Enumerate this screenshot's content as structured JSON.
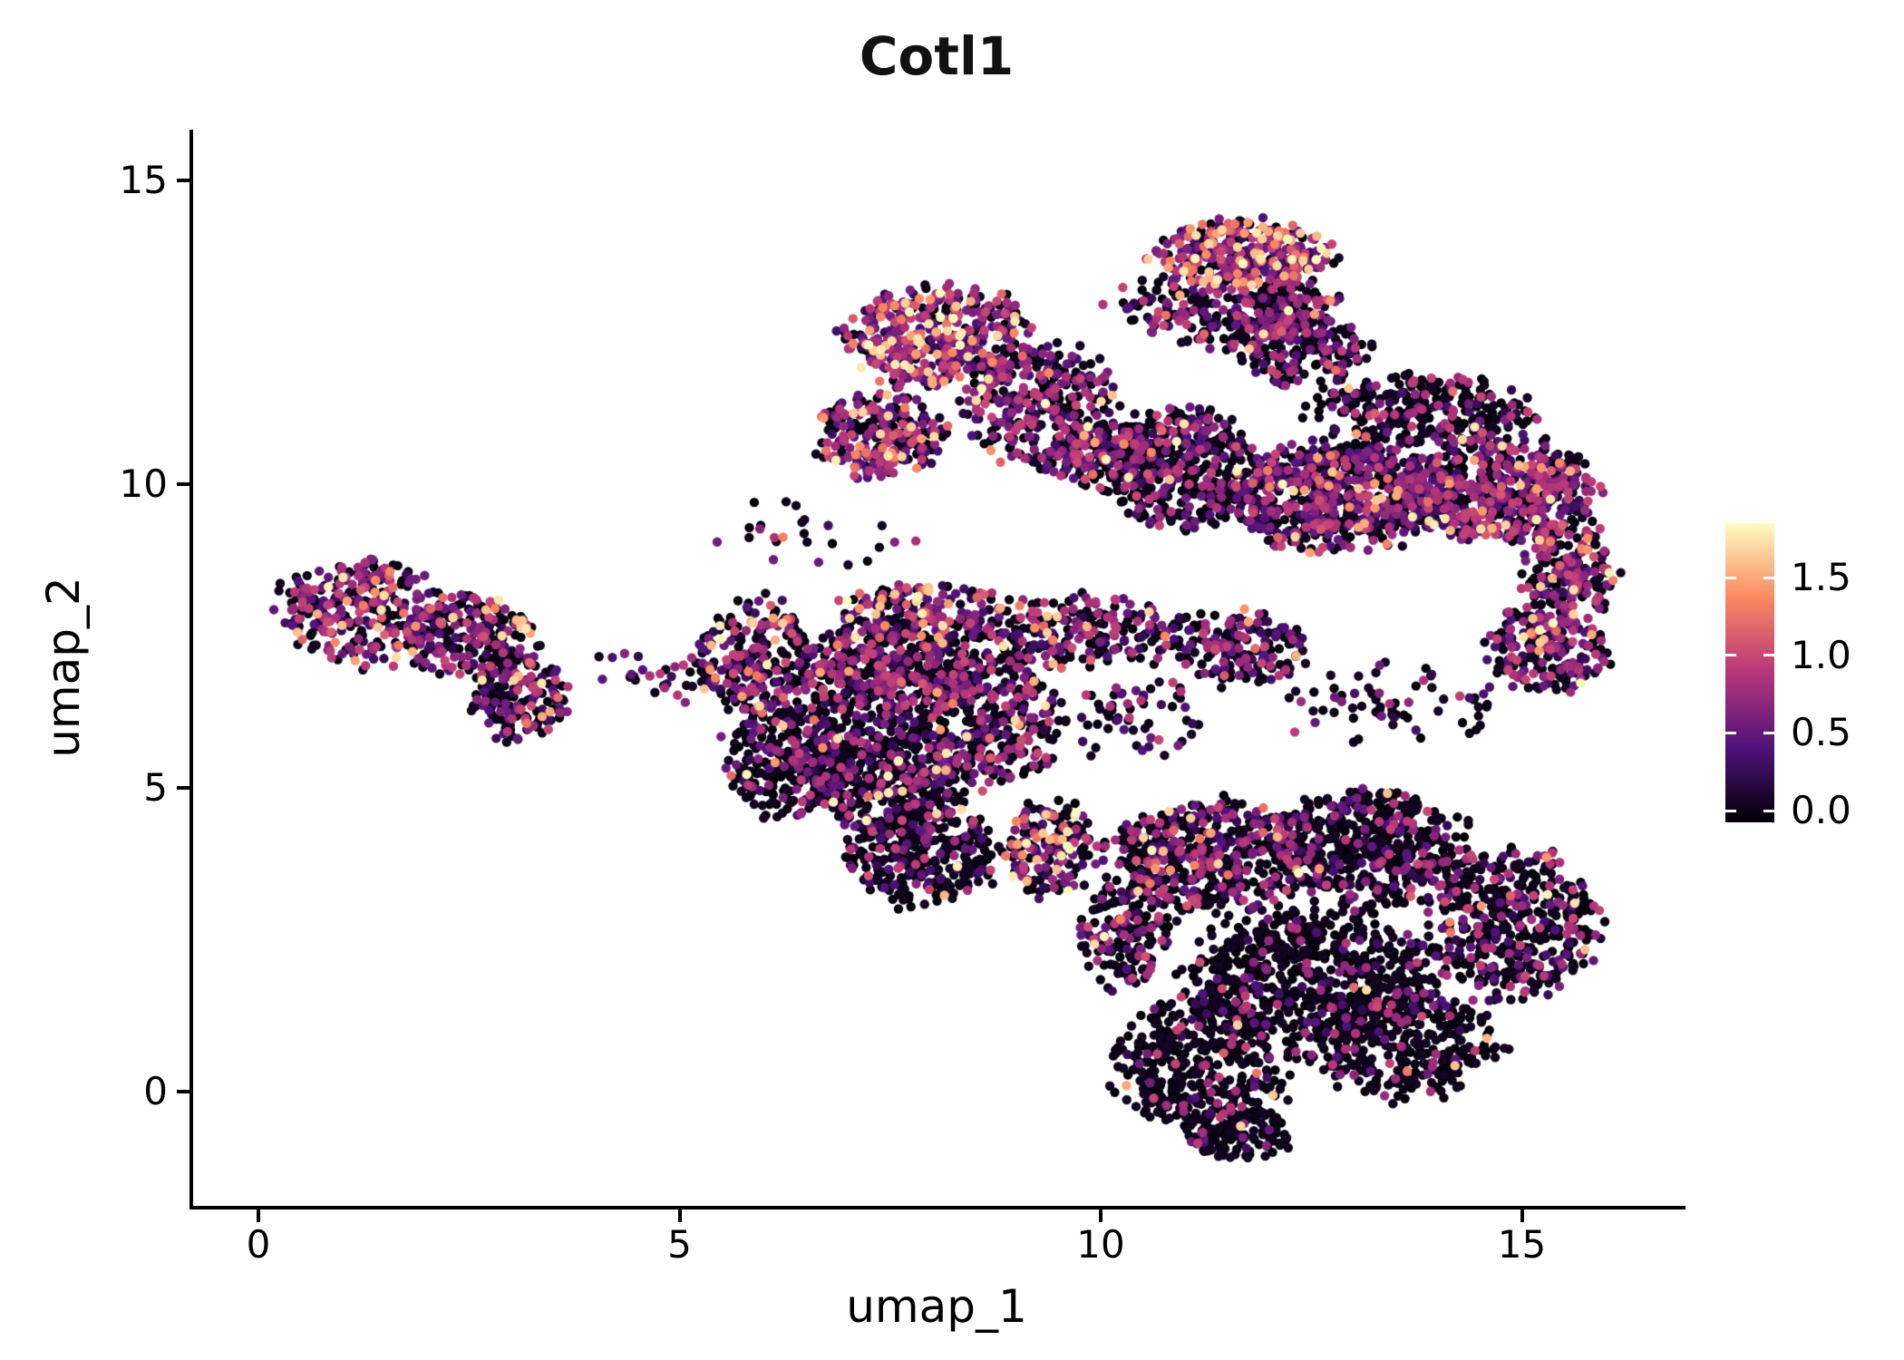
{
  "chart_data": {
    "type": "scatter",
    "title": "Cotl1",
    "xlabel": "umap_1",
    "ylabel": "umap_2",
    "xlim": [
      -0.8,
      16.9
    ],
    "ylim": [
      -1.9,
      15.8
    ],
    "grid": false,
    "xticks": [
      0,
      5,
      10,
      15
    ],
    "xtick_labels": [
      "0",
      "5",
      "10",
      "15"
    ],
    "yticks": [
      0,
      5,
      10,
      15
    ],
    "ytick_labels": [
      "0",
      "5",
      "10",
      "15"
    ],
    "colorbar": {
      "position": "right",
      "tick_values": [
        1.5,
        1.0,
        0.5,
        0.0
      ],
      "tick_labels": [
        "1.5",
        "1.0",
        "0.5",
        "0.0"
      ],
      "value_min": 0.0,
      "value_max": 1.8,
      "bar_value_min": -0.075,
      "bar_value_max": 1.85
    },
    "colormap": {
      "name": "magma",
      "stops": [
        {
          "t": 0.0,
          "hex": "#000004"
        },
        {
          "t": 0.25,
          "hex": "#50127b"
        },
        {
          "t": 0.5,
          "hex": "#b63679"
        },
        {
          "t": 0.75,
          "hex": "#fb8861"
        },
        {
          "t": 1.0,
          "hex": "#fcfdbf"
        }
      ]
    },
    "expression_bins": {
      "zero": [
        0.0,
        0.12
      ],
      "mid": [
        0.25,
        1.0
      ],
      "high": [
        1.0,
        1.8
      ]
    },
    "clusters": [
      {
        "id": "A1",
        "cx": 1.2,
        "cy": 7.9,
        "rx": 0.95,
        "ry": 0.85,
        "n": 300,
        "w": [
          0.45,
          0.45,
          0.1
        ]
      },
      {
        "id": "A2",
        "cx": 2.5,
        "cy": 7.5,
        "rx": 0.8,
        "ry": 0.65,
        "n": 200,
        "w": [
          0.5,
          0.42,
          0.08
        ]
      },
      {
        "id": "A3",
        "cx": 3.1,
        "cy": 6.5,
        "rx": 0.55,
        "ry": 0.75,
        "n": 180,
        "w": [
          0.55,
          0.4,
          0.05
        ]
      },
      {
        "id": "A4",
        "cx": 4.2,
        "cy": 7.0,
        "rx": 0.4,
        "ry": 0.3,
        "n": 10,
        "w": [
          0.7,
          0.3,
          0.0
        ]
      },
      {
        "id": "B1",
        "cx": 5.9,
        "cy": 7.2,
        "rx": 0.65,
        "ry": 0.9,
        "n": 240,
        "w": [
          0.5,
          0.4,
          0.1
        ]
      },
      {
        "id": "B2",
        "cx": 6.3,
        "cy": 5.5,
        "rx": 0.75,
        "ry": 1.0,
        "n": 300,
        "w": [
          0.7,
          0.28,
          0.02
        ]
      },
      {
        "id": "C1",
        "cx": 7.5,
        "cy": 6.9,
        "rx": 1.0,
        "ry": 0.85,
        "n": 480,
        "w": [
          0.55,
          0.4,
          0.05
        ]
      },
      {
        "id": "C2",
        "cx": 7.4,
        "cy": 5.2,
        "rx": 1.0,
        "ry": 0.9,
        "n": 450,
        "w": [
          0.72,
          0.26,
          0.02
        ]
      },
      {
        "id": "C3",
        "cx": 8.7,
        "cy": 6.1,
        "rx": 0.8,
        "ry": 1.1,
        "n": 320,
        "w": [
          0.65,
          0.32,
          0.03
        ]
      },
      {
        "id": "C4",
        "cx": 7.9,
        "cy": 3.9,
        "rx": 0.9,
        "ry": 0.8,
        "n": 320,
        "w": [
          0.78,
          0.2,
          0.02
        ]
      },
      {
        "id": "C5",
        "cx": 9.4,
        "cy": 4.0,
        "rx": 0.55,
        "ry": 0.8,
        "n": 180,
        "w": [
          0.55,
          0.35,
          0.1
        ]
      },
      {
        "id": "C6",
        "cx": 7.9,
        "cy": 7.9,
        "rx": 0.95,
        "ry": 0.45,
        "n": 170,
        "w": [
          0.35,
          0.5,
          0.15
        ]
      },
      {
        "id": "D1",
        "cx": 8.1,
        "cy": 12.4,
        "rx": 1.1,
        "ry": 0.85,
        "n": 450,
        "w": [
          0.25,
          0.6,
          0.15
        ]
      },
      {
        "id": "D2",
        "cx": 7.4,
        "cy": 10.8,
        "rx": 0.75,
        "ry": 0.7,
        "n": 240,
        "w": [
          0.4,
          0.5,
          0.1
        ]
      },
      {
        "id": "D3",
        "cx": 9.3,
        "cy": 11.3,
        "rx": 0.9,
        "ry": 1.0,
        "n": 320,
        "w": [
          0.45,
          0.5,
          0.05
        ]
      },
      {
        "id": "D4",
        "cx": 10.0,
        "cy": 10.5,
        "rx": 0.6,
        "ry": 0.6,
        "n": 150,
        "w": [
          0.5,
          0.45,
          0.05
        ]
      },
      {
        "id": "E1",
        "cx": 11.7,
        "cy": 13.8,
        "rx": 1.0,
        "ry": 0.55,
        "n": 320,
        "w": [
          0.25,
          0.5,
          0.25
        ]
      },
      {
        "id": "E2",
        "cx": 11.5,
        "cy": 12.9,
        "rx": 1.3,
        "ry": 0.6,
        "n": 300,
        "w": [
          0.55,
          0.4,
          0.05
        ]
      },
      {
        "id": "E3",
        "cx": 12.4,
        "cy": 12.2,
        "rx": 0.8,
        "ry": 0.6,
        "n": 200,
        "w": [
          0.6,
          0.37,
          0.03
        ]
      },
      {
        "id": "F1",
        "cx": 10.9,
        "cy": 10.3,
        "rx": 0.9,
        "ry": 0.95,
        "n": 420,
        "w": [
          0.6,
          0.37,
          0.03
        ]
      },
      {
        "id": "F2",
        "cx": 12.7,
        "cy": 9.8,
        "rx": 1.3,
        "ry": 0.85,
        "n": 650,
        "w": [
          0.5,
          0.45,
          0.05
        ]
      },
      {
        "id": "F3",
        "cx": 14.7,
        "cy": 9.9,
        "rx": 1.15,
        "ry": 0.85,
        "n": 600,
        "w": [
          0.45,
          0.5,
          0.05
        ]
      },
      {
        "id": "F4",
        "cx": 13.8,
        "cy": 11.2,
        "rx": 1.3,
        "ry": 0.6,
        "n": 280,
        "w": [
          0.75,
          0.23,
          0.02
        ]
      },
      {
        "id": "F5",
        "cx": 15.6,
        "cy": 8.6,
        "rx": 0.55,
        "ry": 0.8,
        "n": 200,
        "w": [
          0.5,
          0.45,
          0.05
        ]
      },
      {
        "id": "F6",
        "cx": 15.3,
        "cy": 7.3,
        "rx": 0.7,
        "ry": 0.7,
        "n": 220,
        "w": [
          0.55,
          0.4,
          0.05
        ]
      },
      {
        "id": "G1",
        "cx": 9.7,
        "cy": 7.6,
        "rx": 1.3,
        "ry": 0.55,
        "n": 240,
        "w": [
          0.55,
          0.4,
          0.05
        ]
      },
      {
        "id": "G2",
        "cx": 11.6,
        "cy": 7.3,
        "rx": 0.9,
        "ry": 0.6,
        "n": 180,
        "w": [
          0.6,
          0.35,
          0.05
        ]
      },
      {
        "id": "G3",
        "cx": 10.4,
        "cy": 6.2,
        "rx": 0.8,
        "ry": 0.8,
        "n": 60,
        "w": [
          0.6,
          0.37,
          0.03
        ]
      },
      {
        "id": "G4",
        "cx": 13.5,
        "cy": 6.4,
        "rx": 1.4,
        "ry": 0.7,
        "n": 70,
        "w": [
          0.75,
          0.24,
          0.01
        ]
      },
      {
        "id": "H1",
        "cx": 11.3,
        "cy": 3.9,
        "rx": 1.2,
        "ry": 0.9,
        "n": 500,
        "w": [
          0.62,
          0.34,
          0.04
        ]
      },
      {
        "id": "H2",
        "cx": 13.2,
        "cy": 4.0,
        "rx": 1.2,
        "ry": 0.9,
        "n": 520,
        "w": [
          0.75,
          0.23,
          0.02
        ]
      },
      {
        "id": "H3",
        "cx": 14.9,
        "cy": 2.8,
        "rx": 1.0,
        "ry": 1.2,
        "n": 480,
        "w": [
          0.72,
          0.26,
          0.02
        ]
      },
      {
        "id": "H4",
        "cx": 12.5,
        "cy": 1.9,
        "rx": 1.4,
        "ry": 1.1,
        "n": 600,
        "w": [
          0.85,
          0.14,
          0.01
        ]
      },
      {
        "id": "H5",
        "cx": 11.2,
        "cy": 0.4,
        "rx": 1.0,
        "ry": 1.1,
        "n": 400,
        "w": [
          0.88,
          0.11,
          0.01
        ]
      },
      {
        "id": "H6",
        "cx": 13.6,
        "cy": 0.8,
        "rx": 1.1,
        "ry": 0.9,
        "n": 350,
        "w": [
          0.85,
          0.14,
          0.01
        ]
      },
      {
        "id": "H7",
        "cx": 10.3,
        "cy": 2.6,
        "rx": 0.55,
        "ry": 0.9,
        "n": 170,
        "w": [
          0.7,
          0.28,
          0.02
        ]
      },
      {
        "id": "H8",
        "cx": 11.6,
        "cy": -0.7,
        "rx": 0.7,
        "ry": 0.45,
        "n": 120,
        "w": [
          0.9,
          0.09,
          0.01
        ]
      },
      {
        "id": "N1",
        "cx": 6.6,
        "cy": 9.2,
        "rx": 1.1,
        "ry": 0.6,
        "n": 25,
        "w": [
          0.6,
          0.35,
          0.05
        ]
      },
      {
        "id": "N2",
        "cx": 5.0,
        "cy": 6.8,
        "rx": 0.4,
        "ry": 0.4,
        "n": 20,
        "w": [
          0.55,
          0.4,
          0.05
        ]
      }
    ]
  }
}
